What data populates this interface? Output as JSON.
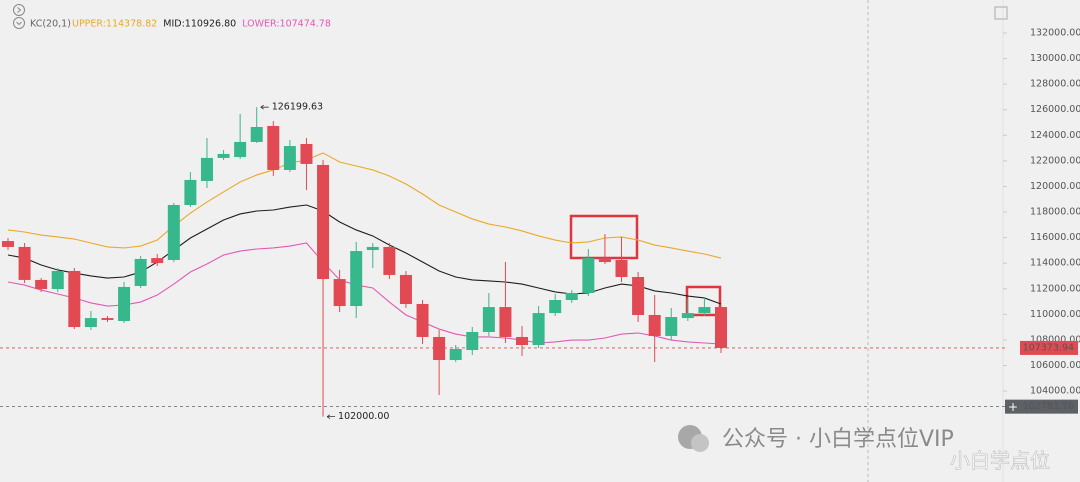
{
  "chart_data": {
    "type": "candlestick",
    "indicator": {
      "title": "KC(20,1)",
      "lines": [
        {
          "name": "UPPER:114378.82",
          "color": "#eaa929",
          "values": [
            116600,
            116440,
            116200,
            116050,
            115890,
            115580,
            115270,
            115190,
            115340,
            115810,
            116910,
            117920,
            118780,
            119570,
            120350,
            120900,
            121290,
            121830,
            122070,
            122620,
            121910,
            121600,
            121290,
            120820,
            120190,
            119410,
            118550,
            118000,
            117460,
            117060,
            116830,
            116520,
            116130,
            115810,
            115580,
            115660,
            115970,
            116050,
            115810,
            115420,
            115190,
            114950,
            114720,
            114400
          ]
        },
        {
          "name": "MID:110926.80",
          "color": "#1e1e1e",
          "values": [
            114640,
            114400,
            113860,
            113470,
            113230,
            113000,
            112840,
            112920,
            113310,
            114090,
            115030,
            115970,
            116670,
            117380,
            117850,
            118080,
            118160,
            118390,
            118550,
            118080,
            117220,
            116600,
            116130,
            115420,
            114800,
            114090,
            113390,
            112920,
            112690,
            112610,
            112530,
            112370,
            112060,
            111750,
            111590,
            111670,
            112060,
            112370,
            112220,
            111830,
            111670,
            111430,
            111280,
            110810
          ]
        },
        {
          "name": "LOWER:107474.78",
          "color": "#e05bb5",
          "values": [
            112530,
            112290,
            111900,
            111590,
            111280,
            110890,
            110650,
            110730,
            110960,
            111510,
            112370,
            113310,
            113940,
            114640,
            114950,
            115110,
            115190,
            115340,
            115580,
            114090,
            112690,
            112290,
            112060,
            110960,
            109950,
            109400,
            108850,
            108460,
            108230,
            108230,
            108150,
            107990,
            107760,
            107840,
            107990,
            107990,
            108150,
            108460,
            108540,
            108310,
            107990,
            107840,
            107760,
            107680
          ]
        }
      ]
    },
    "open": [
      115730,
      115270,
      112690,
      111980,
      113390,
      109010,
      109710,
      109480,
      112220,
      114400,
      114250,
      118550,
      120430,
      122230,
      122300,
      123480,
      124730,
      121290,
      123320,
      121680,
      112760,
      110650,
      115030,
      115270,
      113080,
      110810,
      108230,
      106430,
      107210,
      108620,
      110570,
      108230,
      107600,
      110100,
      111120,
      111670,
      114400,
      114250,
      112920,
      109950,
      108310,
      109710,
      110100,
      110570
    ],
    "high": [
      115970,
      115580,
      112840,
      113620,
      113620,
      110260,
      109870,
      112530,
      114560,
      114720,
      118710,
      121130,
      123790,
      122850,
      125670,
      126199.63,
      125120,
      123630,
      123790,
      122070,
      113470,
      115660,
      115580,
      115580,
      113390,
      111120,
      108780,
      107600,
      109010,
      111670,
      114090,
      109090,
      110650,
      111590,
      111900,
      115110,
      116280,
      116050,
      113310,
      111510,
      110500,
      111200,
      111360,
      110730
    ],
    "low": [
      115030,
      112450,
      111750,
      111750,
      108850,
      108780,
      109400,
      109320,
      112060,
      113780,
      114090,
      118390,
      119880,
      122070,
      122150,
      123400,
      120820,
      121130,
      119720,
      102000,
      110180,
      109710,
      113620,
      112760,
      110500,
      107680,
      103690,
      106270,
      106820,
      108310,
      107760,
      106740,
      107370,
      109870,
      110890,
      111430,
      113940,
      112530,
      109400,
      106270,
      107990,
      109480,
      109870,
      106980
    ],
    "close": [
      115270,
      112690,
      111980,
      113390,
      109010,
      109710,
      109560,
      112140,
      114330,
      114010,
      118550,
      120510,
      122230,
      122540,
      123480,
      124650,
      121290,
      123160,
      121760,
      112760,
      110650,
      114950,
      115270,
      113080,
      110810,
      108230,
      106430,
      107290,
      108620,
      110570,
      108230,
      107600,
      110100,
      111120,
      111670,
      114400,
      114090,
      112920,
      109950,
      108310,
      109790,
      110100,
      110570,
      107373.94
    ],
    "up_color": "#36b88c",
    "down_color": "#e14a52",
    "annotations": [
      {
        "value": 126199.63,
        "label": "126199.63"
      },
      {
        "value": 102000,
        "label": "102000.00"
      }
    ],
    "price_lines": [
      {
        "value": 107373.94,
        "color": "#e14a52"
      },
      {
        "value": 102781.76,
        "color": "#5d6166"
      }
    ],
    "ylim": [
      96890,
      134580
    ],
    "yticks": [
      {
        "value": 104000,
        "label": "104000.00"
      },
      {
        "value": 106000,
        "label": "106000.00"
      },
      {
        "value": 108000,
        "label": "108000.00"
      },
      {
        "value": 110000,
        "label": "110000.00"
      },
      {
        "value": 112000,
        "label": "112000.00"
      },
      {
        "value": 114000,
        "label": "114000.00"
      },
      {
        "value": 116000,
        "label": "116000.00"
      },
      {
        "value": 118000,
        "label": "118000.00"
      },
      {
        "value": 120000,
        "label": "120000.00"
      },
      {
        "value": 122000,
        "label": "122000.00"
      },
      {
        "value": 124000,
        "label": "124000.00"
      },
      {
        "value": 126000,
        "label": "126000.00"
      },
      {
        "value": 128000,
        "label": "128000.00"
      },
      {
        "value": 130000,
        "label": "130000.00"
      },
      {
        "value": 132000,
        "label": "132000.00"
      }
    ],
    "watermark": [
      "公众号 · 小白学点位VIP",
      "小白学点位"
    ]
  }
}
